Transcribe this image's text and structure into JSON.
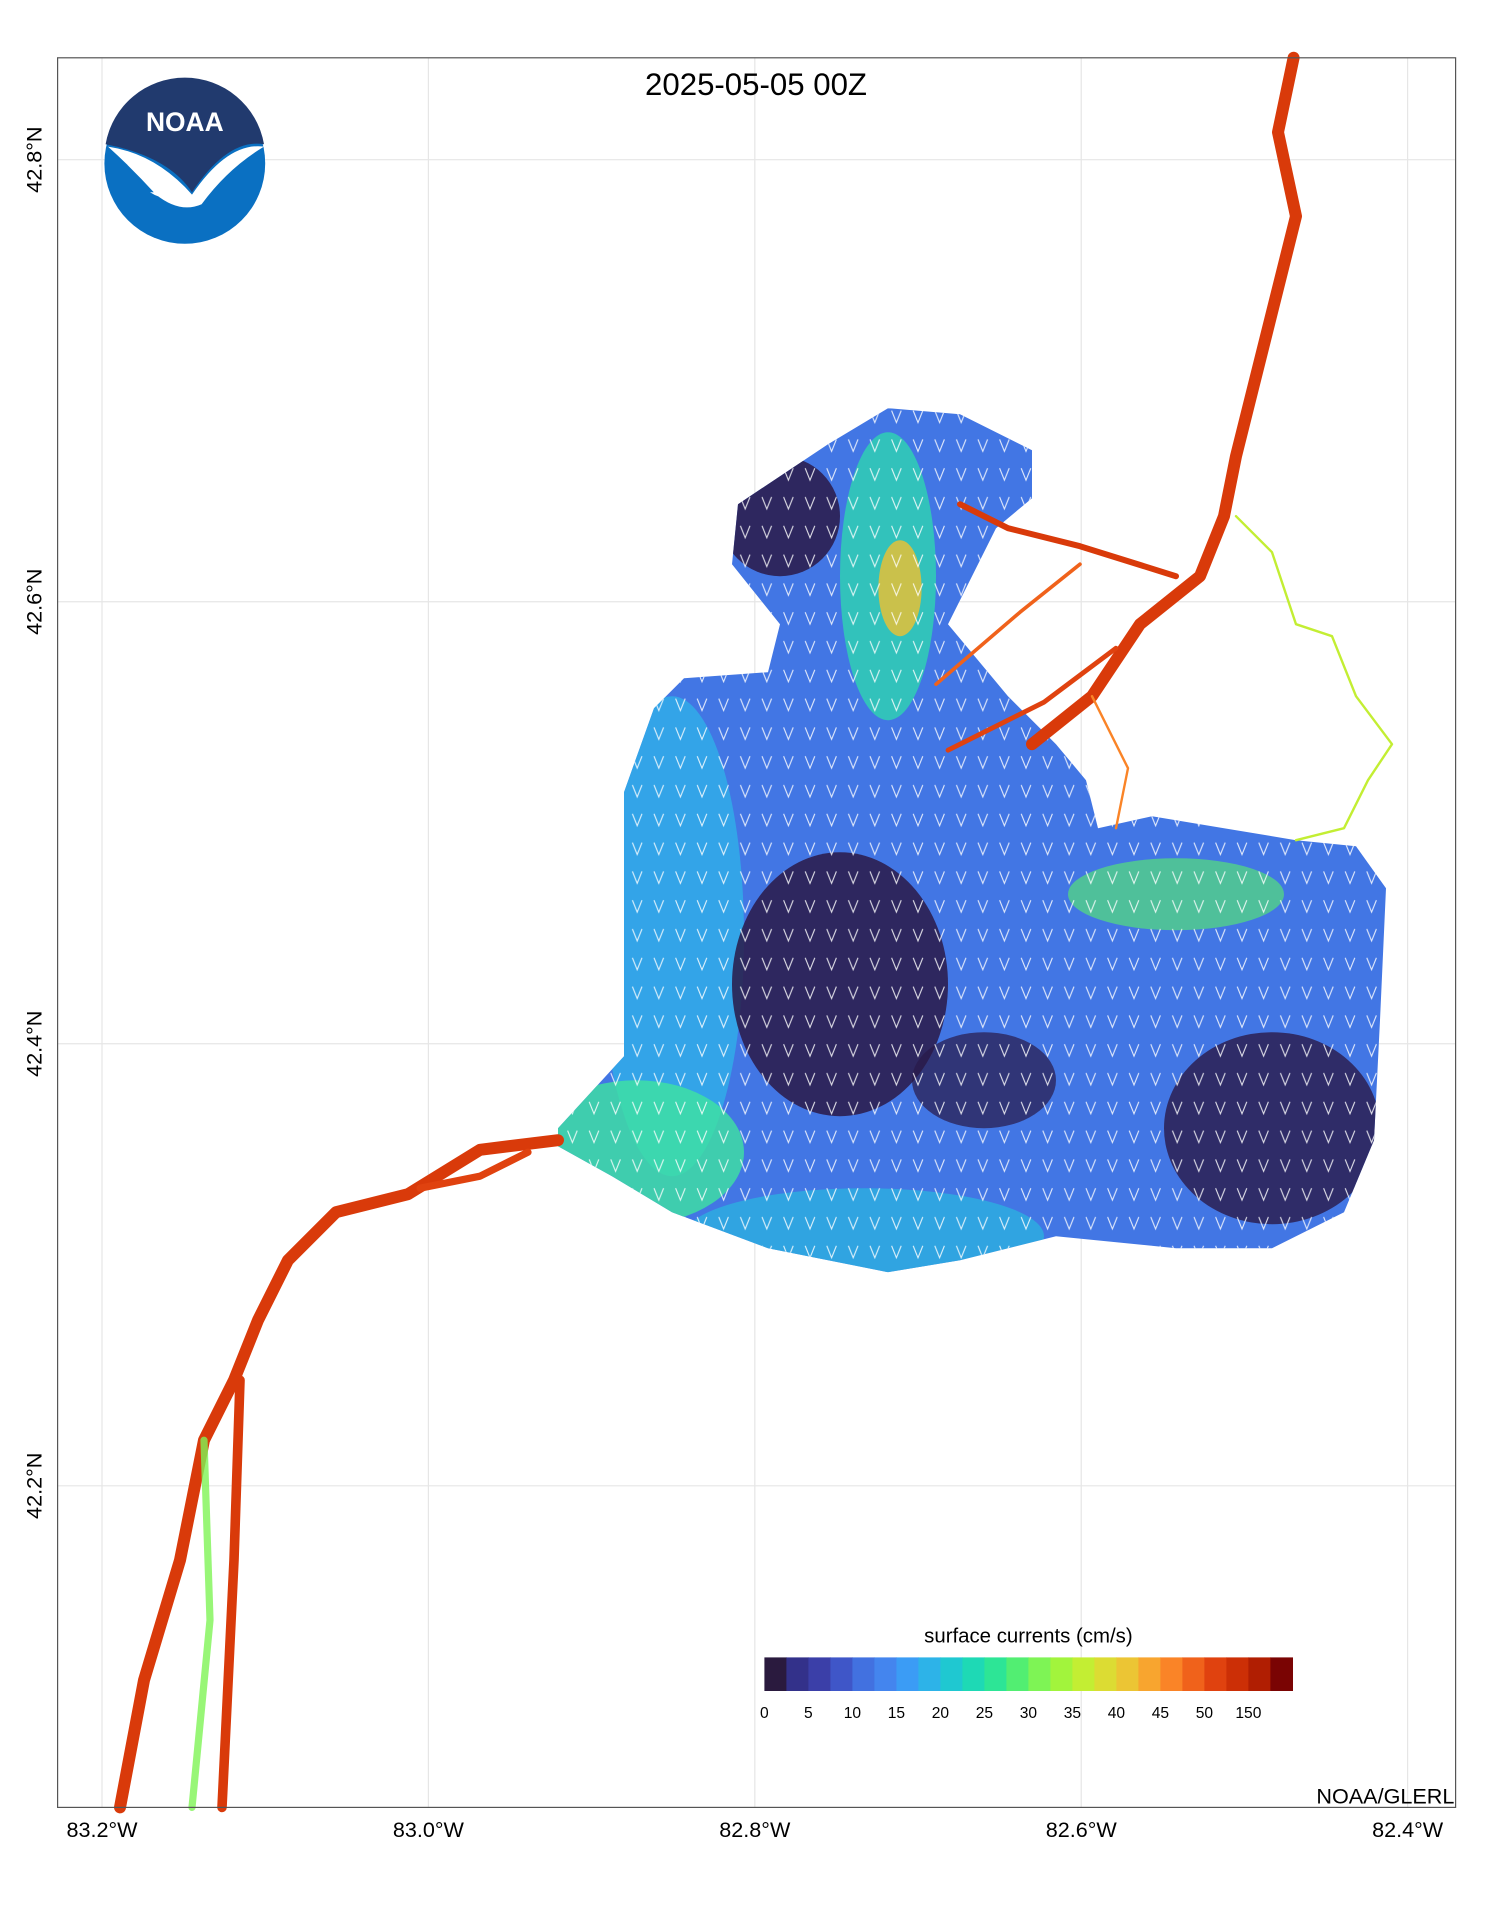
{
  "title": "2025-05-05 00Z",
  "logo": {
    "text": "NOAA"
  },
  "credit": "NOAA/GLERL",
  "map": {
    "xlim": [
      -83.2272,
      -82.3706
    ],
    "ylim": [
      42.0545,
      42.8461
    ],
    "xticks": [
      {
        "value": -83.2,
        "label": "83.2°W"
      },
      {
        "value": -83.0,
        "label": "83.0°W"
      },
      {
        "value": -82.8,
        "label": "82.8°W"
      },
      {
        "value": -82.6,
        "label": "82.6°W"
      },
      {
        "value": -82.4,
        "label": "82.4°W"
      }
    ],
    "yticks": [
      {
        "value": 42.2,
        "label": "42.2°N"
      },
      {
        "value": 42.4,
        "label": "42.4°N"
      },
      {
        "value": 42.6,
        "label": "42.6°N"
      },
      {
        "value": 42.8,
        "label": "42.8°N"
      }
    ],
    "grid": true
  },
  "colorbar": {
    "label": "surface currents (cm/s)",
    "colors": [
      "#2a1a3e",
      "#33318a",
      "#3b3fa8",
      "#3f56c8",
      "#4271e0",
      "#4485ee",
      "#3b9cf5",
      "#2db3e8",
      "#1fc8d1",
      "#1ed9b5",
      "#2de596",
      "#52ee72",
      "#7ef455",
      "#a2f43c",
      "#c3ee33",
      "#dcdc33",
      "#ecc534",
      "#f8a52f",
      "#fa8427",
      "#f0621b",
      "#e0420f",
      "#cc2f06",
      "#b01e02",
      "#7a0403"
    ],
    "ticks": [
      0,
      5,
      10,
      15,
      20,
      25,
      30,
      35,
      40,
      45,
      50,
      150
    ]
  }
}
